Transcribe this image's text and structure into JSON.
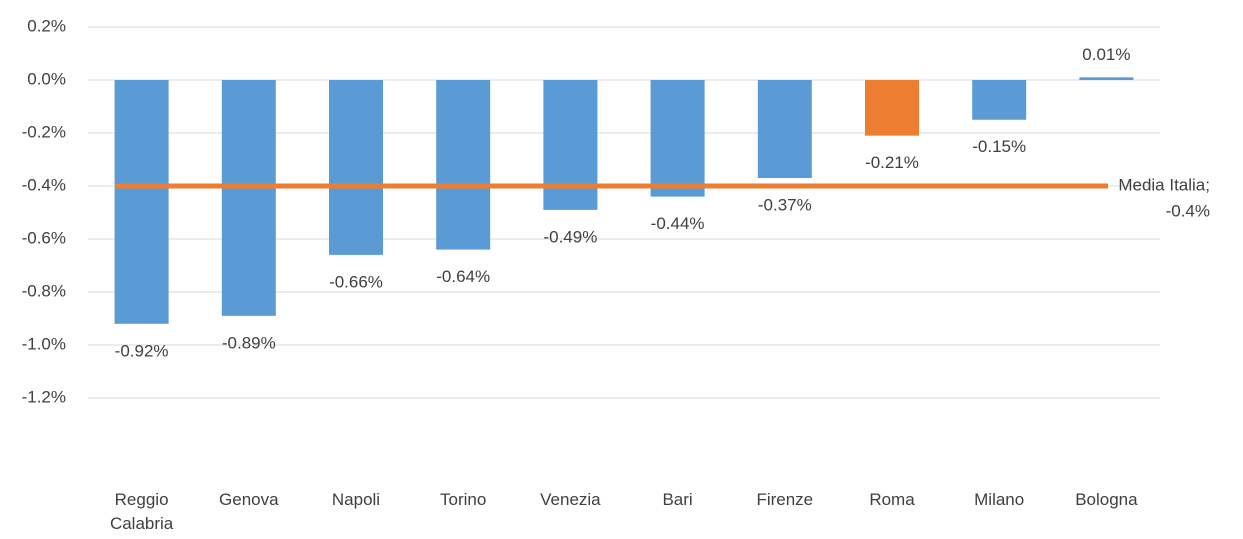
{
  "chart_data": {
    "type": "bar",
    "categories": [
      "Reggio Calabria",
      "Genova",
      "Napoli",
      "Torino",
      "Venezia",
      "Bari",
      "Firenze",
      "Roma",
      "Milano",
      "Bologna"
    ],
    "values": [
      -0.92,
      -0.89,
      -0.66,
      -0.64,
      -0.49,
      -0.44,
      -0.37,
      -0.21,
      -0.15,
      0.01
    ],
    "value_labels": [
      "-0.92%",
      "-0.89%",
      "-0.66%",
      "-0.64%",
      "-0.49%",
      "-0.44%",
      "-0.37%",
      "-0.21%",
      "-0.15%",
      "0.01%"
    ],
    "colors": [
      "#5b9bd5",
      "#5b9bd5",
      "#5b9bd5",
      "#5b9bd5",
      "#5b9bd5",
      "#5b9bd5",
      "#5b9bd5",
      "#ed7d31",
      "#5b9bd5",
      "#5b9bd5"
    ],
    "ylim": [
      -1.34,
      0.3
    ],
    "yticks": [
      {
        "value": 0.2,
        "label": "0.2%"
      },
      {
        "value": 0,
        "label": "0.0%"
      },
      {
        "value": -0.2,
        "label": "-0.2%"
      },
      {
        "value": -0.4,
        "label": "-0.4%"
      },
      {
        "value": -0.6,
        "label": "-0.6%"
      },
      {
        "value": -0.8,
        "label": "-0.8%"
      },
      {
        "value": -1.0,
        "label": "-1.0%"
      },
      {
        "value": -1.2,
        "label": "-1.2%"
      }
    ],
    "grid": true,
    "reference_line": {
      "value": -0.4,
      "color": "#ed7d31",
      "label_lines": [
        "Media Italia;",
        "-0.4%"
      ]
    }
  }
}
